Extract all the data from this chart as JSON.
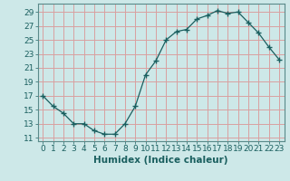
{
  "x": [
    0,
    1,
    2,
    3,
    4,
    5,
    6,
    7,
    8,
    9,
    10,
    11,
    12,
    13,
    14,
    15,
    16,
    17,
    18,
    19,
    20,
    21,
    22,
    23
  ],
  "y": [
    17,
    15.5,
    14.5,
    13,
    13,
    12,
    11.5,
    11.5,
    13,
    15.5,
    20,
    22,
    25,
    26.2,
    26.5,
    28,
    28.5,
    29.2,
    28.8,
    29,
    27.5,
    26,
    24,
    22.2
  ],
  "line_color": "#1a5f5f",
  "marker": "+",
  "marker_size": 5,
  "bg_color": "#cde8e8",
  "grid_color": "#d9a0a0",
  "xlabel": "Humidex (Indice chaleur)",
  "ylabel_ticks": [
    11,
    13,
    15,
    17,
    19,
    21,
    23,
    25,
    27,
    29
  ],
  "xlim": [
    -0.5,
    23.5
  ],
  "ylim": [
    10.5,
    30.2
  ],
  "xticks": [
    0,
    1,
    2,
    3,
    4,
    5,
    6,
    7,
    8,
    9,
    10,
    11,
    12,
    13,
    14,
    15,
    16,
    17,
    18,
    19,
    20,
    21,
    22,
    23
  ],
  "label_fontsize": 7.5,
  "tick_fontsize": 6.5,
  "spine_color": "#5a8a8a"
}
